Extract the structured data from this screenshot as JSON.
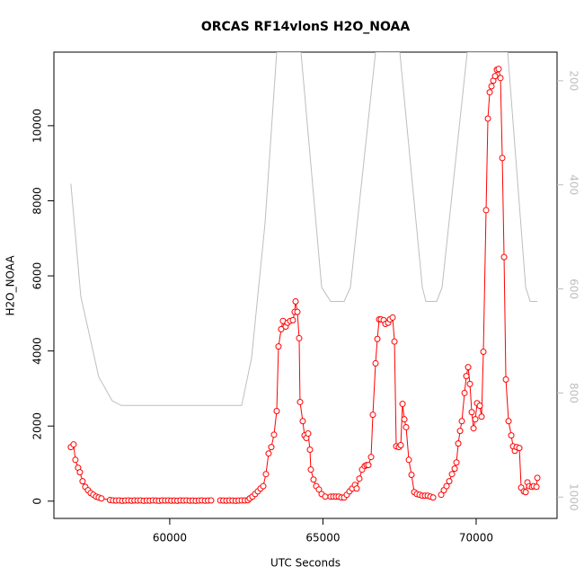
{
  "chart_data": {
    "type": "scatter-line",
    "title": "ORCAS RF14vlonS H2O_NOAA",
    "xlabel": "UTC Seconds",
    "ylabel": "H2O_NOAA",
    "xlim": [
      56220,
      72640
    ],
    "ylim": [
      -460,
      11960
    ],
    "y2lim": [
      1041,
      145
    ],
    "xticks": [
      60000,
      65000,
      70000
    ],
    "yticks": [
      0,
      2000,
      4000,
      6000,
      8000,
      10000
    ],
    "y2ticks": [
      200,
      400,
      600,
      800,
      1000
    ],
    "series": [
      {
        "color": "#ff0000",
        "x": [
          56774,
          56862,
          56921,
          57009,
          57068,
          57156,
          57244,
          57332,
          57420,
          57508,
          57596,
          57683,
          57771,
          58050,
          58150,
          58250,
          58350,
          58450,
          58550,
          58650,
          58750,
          58850,
          58950,
          59050,
          59150,
          59250,
          59350,
          59450,
          59550,
          59650,
          59750,
          59850,
          59950,
          60050,
          60150,
          60250,
          60350,
          60450,
          60550,
          60650,
          60750,
          60850,
          60950,
          61050,
          61150,
          61250,
          61350,
          61500,
          61650,
          61750,
          61850,
          61950,
          62050,
          62150,
          62250,
          62350,
          62450,
          62550,
          62611,
          62699,
          62787,
          62875,
          62963,
          63051,
          63139,
          63227,
          63315,
          63403,
          63491,
          63550,
          63637,
          63696,
          63784,
          63843,
          63931,
          64019,
          64077,
          64107,
          64165,
          64224,
          64253,
          64341,
          64400,
          64459,
          64517,
          64576,
          64605,
          64693,
          64781,
          64869,
          64957,
          65075,
          65160,
          65251,
          65339,
          65427,
          65515,
          65603,
          65691,
          65779,
          65867,
          65955,
          66043,
          66101,
          66189,
          66277,
          66365,
          66424,
          66483,
          66571,
          66629,
          66717,
          66776,
          66835,
          66893,
          66981,
          67040,
          67128,
          67187,
          67275,
          67334,
          67392,
          67480,
          67539,
          67598,
          67657,
          67715,
          67803,
          67891,
          67979,
          68067,
          68155,
          68243,
          68331,
          68419,
          68507,
          68595,
          68730,
          68859,
          68947,
          69035,
          69123,
          69211,
          69299,
          69357,
          69416,
          69475,
          69533,
          69621,
          69680,
          69739,
          69797,
          69856,
          69915,
          69973,
          70031,
          70119,
          70177,
          70236,
          70324,
          70383,
          70442,
          70501,
          70559,
          70618,
          70677,
          70735,
          70794,
          70853,
          70911,
          70970,
          71058,
          71146,
          71205,
          71263,
          71322,
          71410,
          71469,
          71557,
          71616,
          71674,
          71733,
          71821,
          71880,
          71968,
          71997
        ],
        "values": [
          1440,
          1510,
          1100,
          890,
          770,
          530,
          380,
          290,
          215,
          170,
          120,
          96,
          72,
          30,
          20,
          15,
          20,
          10,
          15,
          20,
          12,
          18,
          15,
          20,
          10,
          15,
          12,
          20,
          15,
          10,
          18,
          15,
          20,
          12,
          15,
          10,
          18,
          15,
          20,
          12,
          15,
          10,
          15,
          20,
          12,
          15,
          18,
          null,
          20,
          15,
          12,
          18,
          15,
          10,
          15,
          20,
          18,
          25,
          72,
          120,
          190,
          260,
          335,
          400,
          720,
          1270,
          1440,
          1770,
          2400,
          4120,
          4580,
          4800,
          4650,
          4750,
          4800,
          4820,
          5040,
          5320,
          5040,
          4340,
          2640,
          2130,
          1750,
          1680,
          1800,
          1370,
          840,
          575,
          400,
          310,
          190,
          120,
          null,
          120,
          120,
          120,
          120,
          96,
          96,
          170,
          260,
          335,
          430,
          335,
          600,
          840,
          935,
          960,
          960,
          1175,
          2300,
          3670,
          4320,
          4840,
          4840,
          4820,
          4720,
          4750,
          4840,
          4890,
          4250,
          1460,
          1440,
          1490,
          2590,
          2180,
          1970,
          1100,
          700,
          240,
          190,
          170,
          145,
          145,
          145,
          120,
          96,
          null,
          170,
          290,
          400,
          530,
          720,
          865,
          1030,
          1535,
          1870,
          2130,
          2880,
          3330,
          3570,
          3120,
          2370,
          1940,
          2180,
          2610,
          2540,
          2250,
          3980,
          7750,
          10190,
          10890,
          11050,
          11200,
          11320,
          11490,
          11510,
          11270,
          9140,
          6500,
          3240,
          2130,
          1750,
          1460,
          1340,
          1440,
          1415,
          360,
          260,
          240,
          500,
          400,
          380,
          400,
          380,
          620
        ]
      },
      {
        "color": "#bebebe",
        "axis": "y2",
        "x": [
          56774,
          57097,
          57683,
          58123,
          58417,
          62347,
          62670,
          63110,
          63491,
          64283,
          64958,
          65251,
          65691,
          65896,
          66717,
          67509,
          68243,
          68360,
          68712,
          68888,
          69709,
          71029,
          71616,
          71763,
          71998
        ],
        "values": [
          398,
          614,
          769,
          815,
          824,
          824,
          733,
          474,
          145,
          145,
          597,
          624,
          624,
          597,
          145,
          145,
          597,
          624,
          624,
          597,
          145,
          145,
          597,
          624,
          624
        ]
      }
    ]
  }
}
